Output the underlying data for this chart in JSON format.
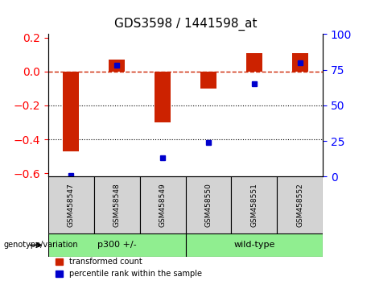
{
  "title": "GDS3598 / 1441598_at",
  "samples": [
    "GSM458547",
    "GSM458548",
    "GSM458549",
    "GSM458550",
    "GSM458551",
    "GSM458552"
  ],
  "bar_values": [
    -0.47,
    0.07,
    -0.3,
    -0.1,
    0.11,
    0.11
  ],
  "percentile_values": [
    1,
    78,
    13,
    24,
    65,
    80
  ],
  "bar_color": "#cc2200",
  "dot_color": "#0000cc",
  "groups": [
    {
      "label": "p300 +/-",
      "samples": [
        0,
        1,
        2
      ],
      "color": "#90ee90"
    },
    {
      "label": "wild-type",
      "samples": [
        3,
        4,
        5
      ],
      "color": "#90ee90"
    }
  ],
  "group_label": "genotype/variation",
  "ylim_left": [
    -0.62,
    0.22
  ],
  "ylim_right": [
    0,
    100
  ],
  "yticks_left": [
    -0.6,
    -0.4,
    -0.2,
    0.0,
    0.2
  ],
  "yticks_right": [
    0,
    25,
    50,
    75,
    100
  ],
  "hline_y": 0,
  "dotted_lines": [
    -0.2,
    -0.4
  ],
  "legend_items": [
    {
      "label": "transformed count",
      "color": "#cc2200"
    },
    {
      "label": "percentile rank within the sample",
      "color": "#0000cc"
    }
  ]
}
